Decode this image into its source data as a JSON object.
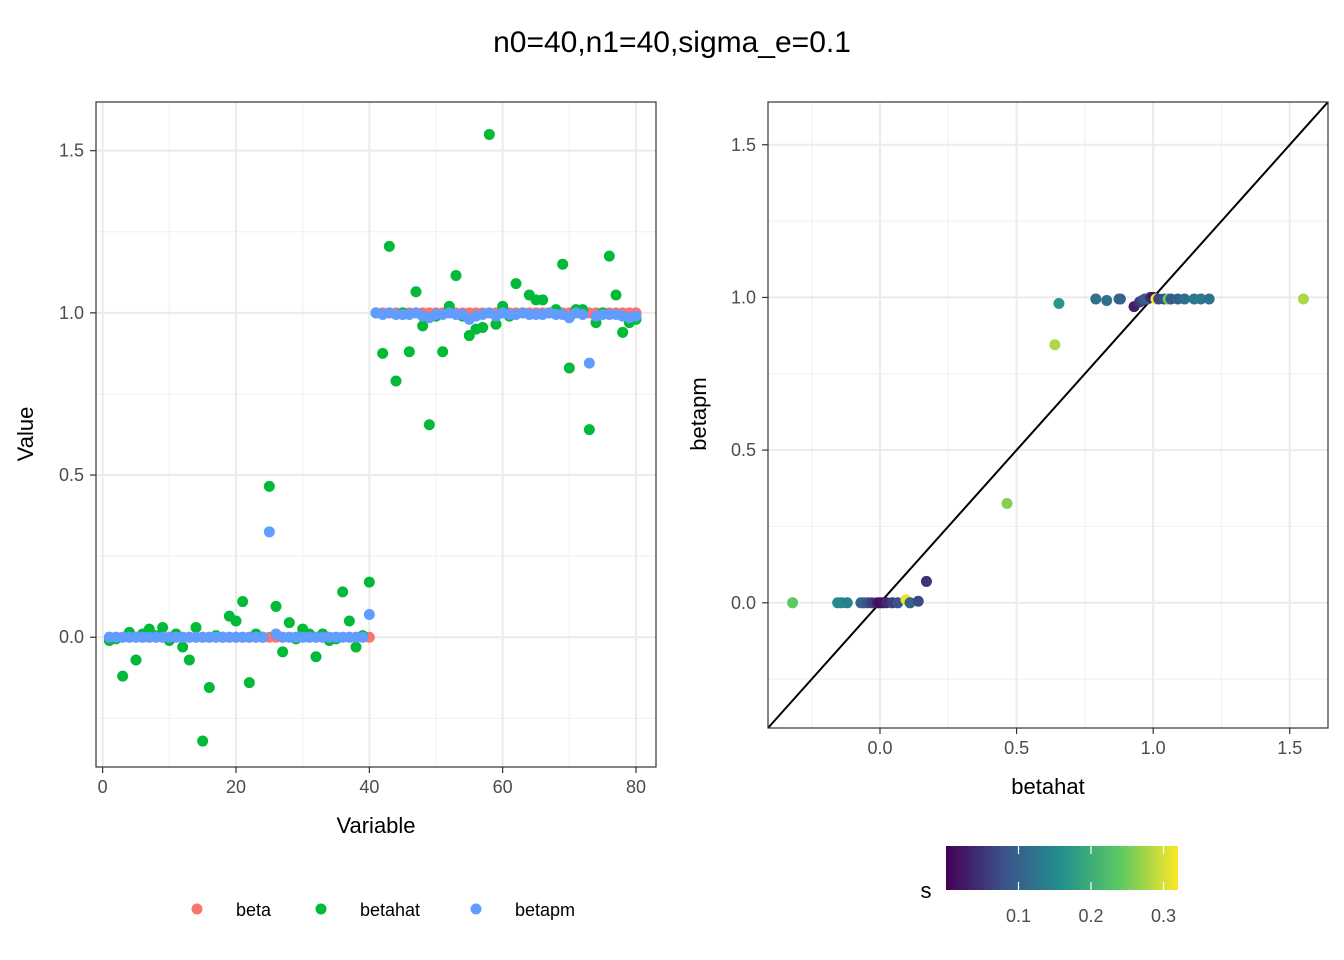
{
  "title": "n0=40,n1=40,sigma_e=0.1",
  "chart_data": [
    {
      "type": "scatter",
      "name": "left-panel",
      "xlabel": "Variable",
      "ylabel": "Value",
      "xlim": [
        -1,
        83
      ],
      "ylim": [
        -0.4,
        1.65
      ],
      "xticks": [
        0,
        20,
        40,
        60,
        80
      ],
      "xtick_labels": [
        "0",
        "20",
        "40",
        "60",
        "80"
      ],
      "yticks": [
        0.0,
        0.5,
        1.0,
        1.5
      ],
      "ytick_labels": [
        "0.0",
        "0.5",
        "1.0",
        "1.5"
      ],
      "legend": "bottom",
      "series": [
        {
          "name": "beta",
          "color": "#F8766D",
          "x": [
            1,
            2,
            3,
            4,
            5,
            6,
            7,
            8,
            9,
            10,
            11,
            12,
            13,
            14,
            15,
            16,
            17,
            18,
            19,
            20,
            21,
            22,
            23,
            24,
            25,
            26,
            27,
            28,
            29,
            30,
            31,
            32,
            33,
            34,
            35,
            36,
            37,
            38,
            39,
            40,
            41,
            42,
            43,
            44,
            45,
            46,
            47,
            48,
            49,
            50,
            51,
            52,
            53,
            54,
            55,
            56,
            57,
            58,
            59,
            60,
            61,
            62,
            63,
            64,
            65,
            66,
            67,
            68,
            69,
            70,
            71,
            72,
            73,
            74,
            75,
            76,
            77,
            78,
            79,
            80
          ],
          "y": [
            0,
            0,
            0,
            0,
            0,
            0,
            0,
            0,
            0,
            0,
            0,
            0,
            0,
            0,
            0,
            0,
            0,
            0,
            0,
            0,
            0,
            0,
            0,
            0,
            0,
            0,
            0,
            0,
            0,
            0,
            0,
            0,
            0,
            0,
            0,
            0,
            0,
            0,
            0,
            0,
            1,
            1,
            1,
            1,
            1,
            1,
            1,
            1,
            1,
            1,
            1,
            1,
            1,
            1,
            1,
            1,
            1,
            1,
            1,
            1,
            1,
            1,
            1,
            1,
            1,
            1,
            1,
            1,
            1,
            1,
            1,
            1,
            1,
            1,
            1,
            1,
            1,
            1,
            1,
            1
          ]
        },
        {
          "name": "betahat",
          "color": "#00BA38",
          "x": [
            1,
            2,
            3,
            4,
            5,
            6,
            7,
            8,
            9,
            10,
            11,
            12,
            13,
            14,
            15,
            16,
            17,
            18,
            19,
            20,
            21,
            22,
            23,
            24,
            25,
            26,
            27,
            28,
            29,
            30,
            31,
            32,
            33,
            34,
            35,
            36,
            37,
            38,
            39,
            40,
            41,
            42,
            43,
            44,
            45,
            46,
            47,
            48,
            49,
            50,
            51,
            52,
            53,
            54,
            55,
            56,
            57,
            58,
            59,
            60,
            61,
            62,
            63,
            64,
            65,
            66,
            67,
            68,
            69,
            70,
            71,
            72,
            73,
            74,
            75,
            76,
            77,
            78,
            79,
            80
          ],
          "y": [
            -0.01,
            -0.005,
            -0.12,
            0.015,
            -0.07,
            0.01,
            0.025,
            0.005,
            0.03,
            -0.01,
            0.01,
            -0.03,
            -0.07,
            0.03,
            -0.32,
            -0.155,
            0.005,
            0.0,
            0.065,
            0.05,
            0.11,
            -0.14,
            0.01,
            0.0,
            0.465,
            0.095,
            -0.045,
            0.045,
            -0.005,
            0.025,
            0.01,
            -0.06,
            0.01,
            -0.01,
            -0.005,
            0.14,
            0.05,
            -0.03,
            0.005,
            0.17,
            1.0,
            0.875,
            1.205,
            0.79,
            1.0,
            0.88,
            1.065,
            0.96,
            0.655,
            0.99,
            0.88,
            1.02,
            1.115,
            0.99,
            0.93,
            0.95,
            0.955,
            1.55,
            0.965,
            1.02,
            0.99,
            1.09,
            1.0,
            1.055,
            1.04,
            1.04,
            1.0,
            1.01,
            1.15,
            0.83,
            1.01,
            1.01,
            0.64,
            0.97,
            1.0,
            1.175,
            1.055,
            0.94,
            0.97,
            0.98
          ]
        },
        {
          "name": "betapm",
          "color": "#619CFF",
          "x": [
            1,
            2,
            3,
            4,
            5,
            6,
            7,
            8,
            9,
            10,
            11,
            12,
            13,
            14,
            15,
            16,
            17,
            18,
            19,
            20,
            21,
            22,
            23,
            24,
            25,
            26,
            27,
            28,
            29,
            30,
            31,
            32,
            33,
            34,
            35,
            36,
            37,
            38,
            39,
            40,
            41,
            42,
            43,
            44,
            45,
            46,
            47,
            48,
            49,
            50,
            51,
            52,
            53,
            54,
            55,
            56,
            57,
            58,
            59,
            60,
            61,
            62,
            63,
            64,
            65,
            66,
            67,
            68,
            69,
            70,
            71,
            72,
            73,
            74,
            75,
            76,
            77,
            78,
            79,
            80
          ],
          "y": [
            0,
            0,
            0,
            0,
            0,
            0,
            0,
            0,
            0,
            0,
            0,
            0,
            0,
            0,
            0,
            0,
            0,
            0,
            0,
            0,
            0,
            0,
            0,
            0,
            0.325,
            0.01,
            0,
            0,
            0,
            0,
            0,
            0,
            0,
            0,
            0,
            0,
            0,
            0,
            0,
            0.07,
            1.0,
            0.995,
            1.0,
            0.995,
            0.995,
            0.995,
            1.0,
            0.99,
            0.985,
            0.995,
            0.995,
            1.0,
            0.995,
            0.995,
            0.98,
            0.99,
            0.995,
            1.0,
            0.99,
            1.0,
            0.995,
            0.995,
            1.0,
            0.995,
            0.995,
            0.995,
            1.0,
            0.995,
            0.995,
            0.985,
            1.0,
            0.995,
            0.845,
            0.99,
            0.995,
            0.995,
            0.995,
            0.99,
            0.985,
            0.99
          ]
        }
      ]
    },
    {
      "type": "scatter",
      "name": "right-panel",
      "xlabel": "betahat",
      "ylabel": "betapm",
      "xlim": [
        -0.41,
        1.64
      ],
      "ylim": [
        -0.41,
        1.64
      ],
      "xticks": [
        0.0,
        0.5,
        1.0,
        1.5
      ],
      "xtick_labels": [
        "0.0",
        "0.5",
        "1.0",
        "1.5"
      ],
      "yticks": [
        0.0,
        0.5,
        1.0,
        1.5
      ],
      "ytick_labels": [
        "0.0",
        "0.5",
        "1.0",
        "1.5"
      ],
      "reference_line": "y = x",
      "colorbar": {
        "label": "s",
        "range": [
          0.0,
          0.32
        ],
        "ticks": [
          0.1,
          0.2,
          0.3
        ],
        "tick_labels": [
          "0.1",
          "0.2",
          "0.3"
        ],
        "colors": [
          "#440154",
          "#3B528B",
          "#21908C",
          "#5DC863",
          "#FDE725"
        ]
      },
      "points": [
        {
          "x": -0.32,
          "y": 0.0,
          "s": 0.24
        },
        {
          "x": -0.155,
          "y": 0.0,
          "s": 0.16
        },
        {
          "x": -0.14,
          "y": 0.0,
          "s": 0.15
        },
        {
          "x": -0.12,
          "y": 0.0,
          "s": 0.14
        },
        {
          "x": -0.07,
          "y": 0.0,
          "s": 0.11
        },
        {
          "x": -0.06,
          "y": 0.0,
          "s": 0.1
        },
        {
          "x": -0.045,
          "y": 0.0,
          "s": 0.08
        },
        {
          "x": -0.03,
          "y": 0.0,
          "s": 0.06
        },
        {
          "x": -0.01,
          "y": 0.0,
          "s": 0.03
        },
        {
          "x": 0.0,
          "y": 0.0,
          "s": 0.01
        },
        {
          "x": 0.01,
          "y": 0.0,
          "s": 0.02
        },
        {
          "x": 0.025,
          "y": 0.0,
          "s": 0.04
        },
        {
          "x": 0.045,
          "y": 0.0,
          "s": 0.06
        },
        {
          "x": 0.065,
          "y": 0.0,
          "s": 0.08
        },
        {
          "x": 0.095,
          "y": 0.01,
          "s": 0.31
        },
        {
          "x": 0.11,
          "y": 0.0,
          "s": 0.1
        },
        {
          "x": 0.14,
          "y": 0.005,
          "s": 0.07
        },
        {
          "x": 0.17,
          "y": 0.07,
          "s": 0.05
        },
        {
          "x": 0.465,
          "y": 0.325,
          "s": 0.26
        },
        {
          "x": 0.64,
          "y": 0.845,
          "s": 0.28
        },
        {
          "x": 0.655,
          "y": 0.98,
          "s": 0.17
        },
        {
          "x": 0.79,
          "y": 0.995,
          "s": 0.12
        },
        {
          "x": 0.83,
          "y": 0.99,
          "s": 0.12
        },
        {
          "x": 0.875,
          "y": 0.995,
          "s": 0.11
        },
        {
          "x": 0.88,
          "y": 0.995,
          "s": 0.1
        },
        {
          "x": 0.93,
          "y": 0.97,
          "s": 0.03
        },
        {
          "x": 0.95,
          "y": 0.985,
          "s": 0.05
        },
        {
          "x": 0.96,
          "y": 0.99,
          "s": 0.07
        },
        {
          "x": 0.97,
          "y": 0.995,
          "s": 0.09
        },
        {
          "x": 0.98,
          "y": 0.995,
          "s": 0.1
        },
        {
          "x": 0.99,
          "y": 1.0,
          "s": 0.05
        },
        {
          "x": 1.0,
          "y": 1.0,
          "s": 0.02
        },
        {
          "x": 1.01,
          "y": 0.995,
          "s": 0.32
        },
        {
          "x": 1.02,
          "y": 0.995,
          "s": 0.07
        },
        {
          "x": 1.04,
          "y": 0.995,
          "s": 0.08
        },
        {
          "x": 1.055,
          "y": 0.995,
          "s": 0.25
        },
        {
          "x": 1.065,
          "y": 0.995,
          "s": 0.09
        },
        {
          "x": 1.09,
          "y": 0.995,
          "s": 0.1
        },
        {
          "x": 1.115,
          "y": 0.995,
          "s": 0.12
        },
        {
          "x": 1.15,
          "y": 0.995,
          "s": 0.13
        },
        {
          "x": 1.175,
          "y": 0.995,
          "s": 0.13
        },
        {
          "x": 1.205,
          "y": 0.995,
          "s": 0.12
        },
        {
          "x": 1.55,
          "y": 0.995,
          "s": 0.28
        }
      ]
    }
  ]
}
